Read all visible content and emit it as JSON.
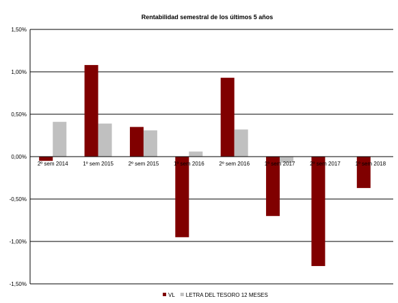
{
  "chart_data": {
    "type": "bar",
    "title": "Rentabilidad semestral de los últimos 5 años",
    "xlabel": "",
    "ylabel": "",
    "categories": [
      "2º sem 2014",
      "1º sem 2015",
      "2º sem 2015",
      "1º sem 2016",
      "2º sem 2016",
      "1º sem 2017",
      "2º sem 2017",
      "1º sem 2018"
    ],
    "series": [
      {
        "name": "VL",
        "color": "#800000",
        "values": [
          -0.05,
          1.08,
          0.35,
          -0.95,
          0.93,
          -0.7,
          -1.29,
          -0.37
        ]
      },
      {
        "name": "LETRA DEL TESORO 12 MESES",
        "color": "#c0c0c0",
        "values": [
          0.41,
          0.39,
          0.31,
          0.06,
          0.32,
          -0.07,
          null,
          null
        ]
      }
    ],
    "ylim": [
      -1.5,
      1.5
    ],
    "yticks": [
      1.5,
      1.0,
      0.5,
      0.0,
      -0.5,
      -1.0,
      -1.5
    ],
    "ytick_labels": [
      "1,50%",
      "1,00%",
      "0,50%",
      "0,00%",
      "-0,50%",
      "-1,00%",
      "-1,50%"
    ],
    "grid": true,
    "legend_position": "bottom"
  }
}
